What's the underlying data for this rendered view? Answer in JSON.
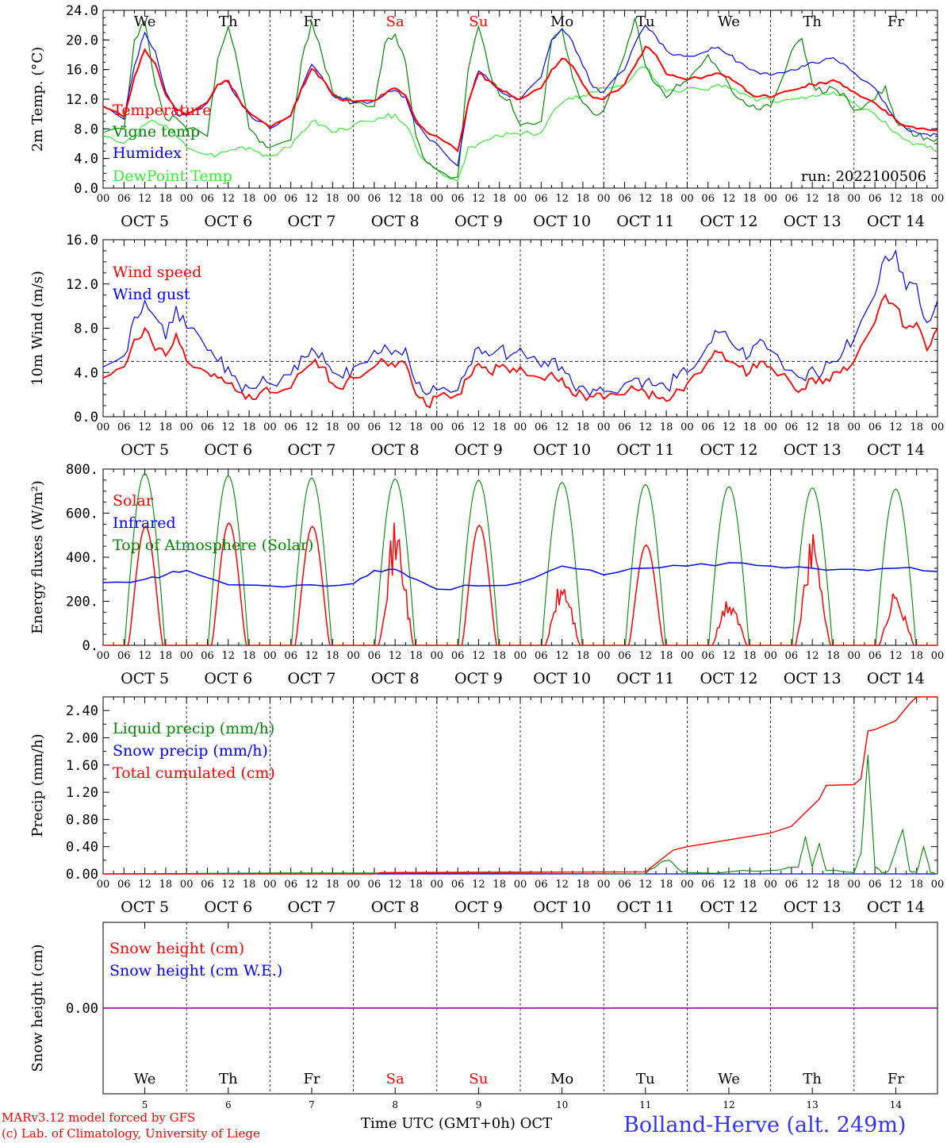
{
  "colors": {
    "red": "#ff0000",
    "green": "#008800",
    "blue": "#0000ff",
    "lightgreen": "#33ee33",
    "purple": "#800080",
    "black": "#000000"
  },
  "days": [
    {
      "abbr": "We",
      "weekend": false,
      "month": "OCT",
      "day": "5"
    },
    {
      "abbr": "Th",
      "weekend": false,
      "month": "OCT",
      "day": "6"
    },
    {
      "abbr": "Fr",
      "weekend": false,
      "month": "OCT",
      "day": "7"
    },
    {
      "abbr": "Sa",
      "weekend": true,
      "month": "OCT",
      "day": "8"
    },
    {
      "abbr": "Su",
      "weekend": true,
      "month": "OCT",
      "day": "9"
    },
    {
      "abbr": "Mo",
      "weekend": false,
      "month": "OCT",
      "day": "10"
    },
    {
      "abbr": "Tu",
      "weekend": false,
      "month": "OCT",
      "day": "11"
    },
    {
      "abbr": "We",
      "weekend": false,
      "month": "OCT",
      "day": "12"
    },
    {
      "abbr": "Th",
      "weekend": false,
      "month": "OCT",
      "day": "13"
    },
    {
      "abbr": "Fr",
      "weekend": false,
      "month": "OCT",
      "day": "14"
    }
  ],
  "hour_ticks": [
    "00",
    "06",
    "12",
    "18"
  ],
  "hour_tick_end": "00",
  "footer": {
    "model": "MARv3.12 model forced by GFS",
    "copyright": "(c) Lab. of Climatology, University of Liege",
    "xlabel": "Time UTC (GMT+0h) OCT",
    "station": "Bolland-Herve (alt. 249m)"
  },
  "chart_data": [
    {
      "type": "line",
      "ylabel": "2m Temp. (°C)",
      "ylim": [
        0,
        24
      ],
      "yticks": [
        "0.0",
        "4.0",
        "8.0",
        "12.0",
        "16.0",
        "20.0",
        "24.0"
      ],
      "annotation": "run: 2022100506",
      "x_hours": [
        0,
        6,
        9,
        12,
        15,
        18,
        21,
        24,
        30,
        33,
        36,
        39,
        42,
        45,
        48,
        54,
        57,
        60,
        63,
        66,
        69,
        72,
        78,
        81,
        84,
        87,
        90,
        93,
        96,
        102,
        105,
        108,
        111,
        114,
        117,
        120,
        126,
        129,
        132,
        135,
        138,
        141,
        144,
        150,
        153,
        156,
        159,
        162,
        165,
        168,
        174,
        177,
        180,
        183,
        186,
        189,
        192,
        198,
        201,
        204,
        207,
        210,
        213,
        216,
        222,
        225,
        228,
        231,
        234,
        237,
        240
      ],
      "series": [
        {
          "name": "Temperature",
          "color": "red",
          "values": [
            11.0,
            9.6,
            15.0,
            18.7,
            16.8,
            12.6,
            10.5,
            10.0,
            11.6,
            14.0,
            14.5,
            12.1,
            10.2,
            9.2,
            8.2,
            9.8,
            13.4,
            16.1,
            14.8,
            12.6,
            11.8,
            11.7,
            11.8,
            12.7,
            13.5,
            12.5,
            9.2,
            7.6,
            7.0,
            5.0,
            11.5,
            15.5,
            14.5,
            13.4,
            12.6,
            12.0,
            13.5,
            16.0,
            17.5,
            16.5,
            14.0,
            12.2,
            12.0,
            14.0,
            16.5,
            19.1,
            18.0,
            15.4,
            15.0,
            14.6,
            15.2,
            15.5,
            15.0,
            14.0,
            12.8,
            12.4,
            12.2,
            13.2,
            13.6,
            14.0,
            14.2,
            14.6,
            13.7,
            13.0,
            11.5,
            10.5,
            9.2,
            8.4,
            8.0,
            7.9,
            7.8
          ]
        },
        {
          "name": "Vigne temp",
          "color": "green",
          "values": [
            7.5,
            8.0,
            20.0,
            22.5,
            14.0,
            9.3,
            9.5,
            8.0,
            7.0,
            17.5,
            21.8,
            16.0,
            8.0,
            6.2,
            5.5,
            6.5,
            17.0,
            22.5,
            18.0,
            13.0,
            12.0,
            11.5,
            11.0,
            19.5,
            20.8,
            17.0,
            7.0,
            3.5,
            2.5,
            1.5,
            16.0,
            21.8,
            16.0,
            12.5,
            12.0,
            8.5,
            9.0,
            20.0,
            21.5,
            15.0,
            11.5,
            10.0,
            10.5,
            18.0,
            23.0,
            16.5,
            14.0,
            12.2,
            14.0,
            14.5,
            18.0,
            16.0,
            14.0,
            12.0,
            11.0,
            10.6,
            11.0,
            18.5,
            20.2,
            14.0,
            12.8,
            13.5,
            12.8,
            10.5,
            12.0,
            13.8,
            9.0,
            8.0,
            7.0,
            6.8,
            6.7
          ]
        },
        {
          "name": "Humidex",
          "color": "blue",
          "values": [
            11.0,
            9.3,
            16.5,
            21.0,
            18.5,
            13.0,
            10.0,
            9.8,
            11.5,
            14.0,
            14.3,
            12.0,
            10.0,
            9.0,
            8.0,
            9.7,
            13.5,
            16.7,
            15.0,
            12.5,
            12.0,
            11.5,
            11.8,
            12.6,
            13.2,
            12.3,
            8.8,
            7.0,
            6.0,
            3.0,
            11.5,
            15.8,
            14.6,
            13.2,
            12.3,
            12.0,
            15.0,
            20.0,
            21.5,
            19.8,
            16.5,
            13.6,
            13.0,
            16.0,
            19.5,
            22.0,
            20.5,
            18.6,
            18.0,
            17.8,
            18.5,
            19.0,
            18.0,
            17.0,
            16.0,
            15.4,
            15.2,
            16.0,
            16.5,
            17.0,
            17.2,
            17.6,
            16.8,
            15.6,
            13.5,
            11.5,
            9.3,
            8.0,
            7.5,
            7.3,
            7.2
          ]
        },
        {
          "name": "DewPoint Temp",
          "color": "lightgreen",
          "values": [
            7.0,
            6.0,
            7.0,
            8.5,
            9.0,
            8.5,
            7.0,
            5.5,
            4.5,
            4.5,
            5.0,
            5.5,
            5.5,
            4.8,
            4.3,
            5.5,
            7.5,
            9.0,
            8.5,
            7.5,
            8.0,
            8.5,
            9.0,
            9.5,
            10.0,
            8.5,
            5.5,
            3.5,
            2.5,
            1.0,
            5.5,
            6.0,
            6.5,
            7.0,
            7.3,
            7.2,
            7.5,
            10.0,
            11.5,
            12.0,
            12.5,
            13.0,
            13.5,
            14.0,
            15.5,
            16.3,
            14.5,
            13.0,
            13.0,
            13.5,
            13.2,
            14.0,
            13.5,
            12.8,
            12.3,
            12.0,
            11.8,
            12.0,
            12.3,
            12.5,
            12.8,
            13.0,
            12.5,
            11.5,
            10.0,
            9.0,
            7.5,
            6.5,
            6.0,
            5.5,
            5.0
          ]
        }
      ]
    },
    {
      "type": "line",
      "ylabel": "10m Wind (m/s)",
      "ylim": [
        0,
        16
      ],
      "yticks": [
        "0.0",
        "4.0",
        "8.0",
        "12.0",
        "16.0"
      ],
      "reference_line": 5,
      "x_hours": [
        0,
        6,
        9,
        12,
        15,
        18,
        21,
        24,
        30,
        33,
        36,
        39,
        42,
        45,
        48,
        54,
        57,
        60,
        63,
        66,
        69,
        72,
        78,
        81,
        84,
        87,
        90,
        93,
        96,
        102,
        105,
        108,
        111,
        114,
        117,
        120,
        126,
        129,
        132,
        135,
        138,
        141,
        144,
        150,
        153,
        156,
        159,
        162,
        165,
        168,
        174,
        177,
        180,
        183,
        186,
        189,
        192,
        198,
        201,
        204,
        207,
        210,
        213,
        216,
        222,
        225,
        228,
        231,
        234,
        237,
        240
      ],
      "series": [
        {
          "name": "Wind speed",
          "color": "red",
          "values": [
            3.5,
            4.5,
            7.0,
            8.0,
            6.0,
            5.5,
            7.5,
            5.0,
            4.0,
            3.5,
            3.0,
            2.2,
            2.0,
            2.1,
            2.2,
            2.6,
            4.0,
            4.8,
            4.5,
            3.0,
            2.5,
            3.5,
            4.5,
            5.0,
            4.5,
            4.8,
            2.0,
            1.0,
            1.8,
            2.0,
            3.5,
            4.8,
            4.0,
            4.5,
            4.0,
            4.5,
            3.5,
            4.0,
            3.5,
            2.0,
            2.0,
            1.8,
            1.6,
            2.0,
            2.5,
            2.2,
            1.8,
            1.4,
            2.5,
            3.0,
            5.0,
            5.8,
            5.0,
            4.5,
            4.0,
            5.0,
            4.5,
            3.0,
            2.5,
            3.5,
            3.0,
            4.0,
            4.5,
            5.0,
            8.5,
            11.0,
            10.0,
            8.0,
            8.5,
            6.0,
            8.0
          ]
        },
        {
          "name": "Wind gust",
          "color": "blue",
          "values": [
            4.5,
            5.5,
            9.0,
            10.5,
            9.0,
            7.0,
            10.0,
            8.0,
            6.0,
            5.0,
            4.5,
            3.0,
            2.6,
            3.0,
            3.0,
            3.8,
            5.5,
            6.2,
            5.8,
            4.0,
            3.5,
            4.5,
            6.0,
            6.5,
            6.0,
            6.2,
            3.0,
            2.0,
            2.4,
            2.4,
            4.5,
            6.3,
            5.5,
            6.2,
            5.5,
            6.2,
            4.5,
            5.2,
            4.5,
            3.0,
            2.8,
            2.5,
            2.3,
            3.0,
            3.5,
            3.2,
            2.8,
            2.6,
            3.5,
            4.0,
            6.5,
            7.6,
            7.0,
            6.0,
            5.5,
            7.0,
            6.0,
            4.2,
            3.5,
            4.5,
            4.0,
            5.0,
            6.0,
            7.0,
            11.0,
            14.5,
            15.0,
            11.5,
            12.0,
            8.5,
            10.5
          ]
        }
      ]
    },
    {
      "type": "line",
      "ylabel": "Energy fluxes (W/m²)",
      "ylim": [
        0,
        800
      ],
      "yticks": [
        "0.",
        "200.",
        "400.",
        "600.",
        "800."
      ],
      "series": [
        {
          "name": "Solar",
          "color": "red",
          "daily_peak": [
            540,
            555,
            540,
            540,
            545,
            285,
            455,
            210,
            490,
            245
          ]
        },
        {
          "name": "Infrared",
          "color": "blue",
          "x_hours": [
            0,
            12,
            18,
            24,
            36,
            48,
            60,
            72,
            78,
            84,
            90,
            96,
            108,
            120,
            132,
            144,
            156,
            168,
            180,
            192,
            204,
            216,
            228,
            240
          ],
          "values": [
            285,
            300,
            320,
            340,
            275,
            270,
            275,
            280,
            340,
            345,
            300,
            255,
            270,
            285,
            360,
            320,
            350,
            360,
            375,
            360,
            350,
            345,
            350,
            335
          ]
        },
        {
          "name": "Top of Atmosphere (Solar)",
          "color": "green",
          "daily_peak": [
            780,
            770,
            760,
            755,
            750,
            740,
            730,
            720,
            715,
            710
          ]
        }
      ]
    },
    {
      "type": "line",
      "ylabel": "Precip (mm/h)",
      "ylim": [
        0,
        2.6
      ],
      "yticks": [
        "0.00",
        "0.40",
        "0.80",
        "1.20",
        "1.60",
        "2.00",
        "2.40"
      ],
      "series": [
        {
          "name": "Liquid precip (mm/h)",
          "color": "green",
          "x_hours": [
            0,
            156,
            160,
            163,
            166,
            168,
            180,
            192,
            200,
            202,
            204,
            206,
            208,
            216,
            218,
            220,
            222,
            224,
            226,
            230,
            232,
            234,
            236,
            238,
            240
          ],
          "values": [
            0,
            0,
            0.15,
            0.2,
            0.05,
            0.02,
            0.03,
            0.05,
            0.1,
            0.55,
            0.1,
            0.45,
            0.05,
            0.02,
            0.3,
            1.75,
            0.1,
            0.02,
            0.05,
            0.65,
            0.05,
            0.02,
            0.4,
            0.02,
            0
          ]
        },
        {
          "name": "Snow precip (mm/h)",
          "color": "blue",
          "x_hours": [
            0,
            240
          ],
          "values": [
            0,
            0
          ]
        },
        {
          "name": "Total cumulated (cm)",
          "color": "red",
          "x_hours": [
            0,
            78,
            80,
            156,
            164,
            168,
            180,
            192,
            198,
            202,
            204,
            206,
            208,
            216,
            218,
            220,
            222,
            228,
            232,
            234,
            240
          ],
          "values": [
            0,
            0,
            0.02,
            0.03,
            0.35,
            0.4,
            0.5,
            0.6,
            0.7,
            0.9,
            1.0,
            1.1,
            1.3,
            1.31,
            1.4,
            2.1,
            2.12,
            2.25,
            2.5,
            2.6,
            2.6
          ]
        }
      ]
    },
    {
      "type": "line",
      "ylabel": "Snow height (cm)",
      "yticks": [
        "0.00"
      ],
      "series": [
        {
          "name": "Snow height (cm)",
          "color": "red",
          "x_hours": [
            0,
            240
          ],
          "values": [
            0,
            0
          ]
        },
        {
          "name": "Snow height (cm W.E.)",
          "color": "blue",
          "x_hours": [
            0,
            240
          ],
          "values": [
            0,
            0
          ]
        }
      ]
    }
  ]
}
